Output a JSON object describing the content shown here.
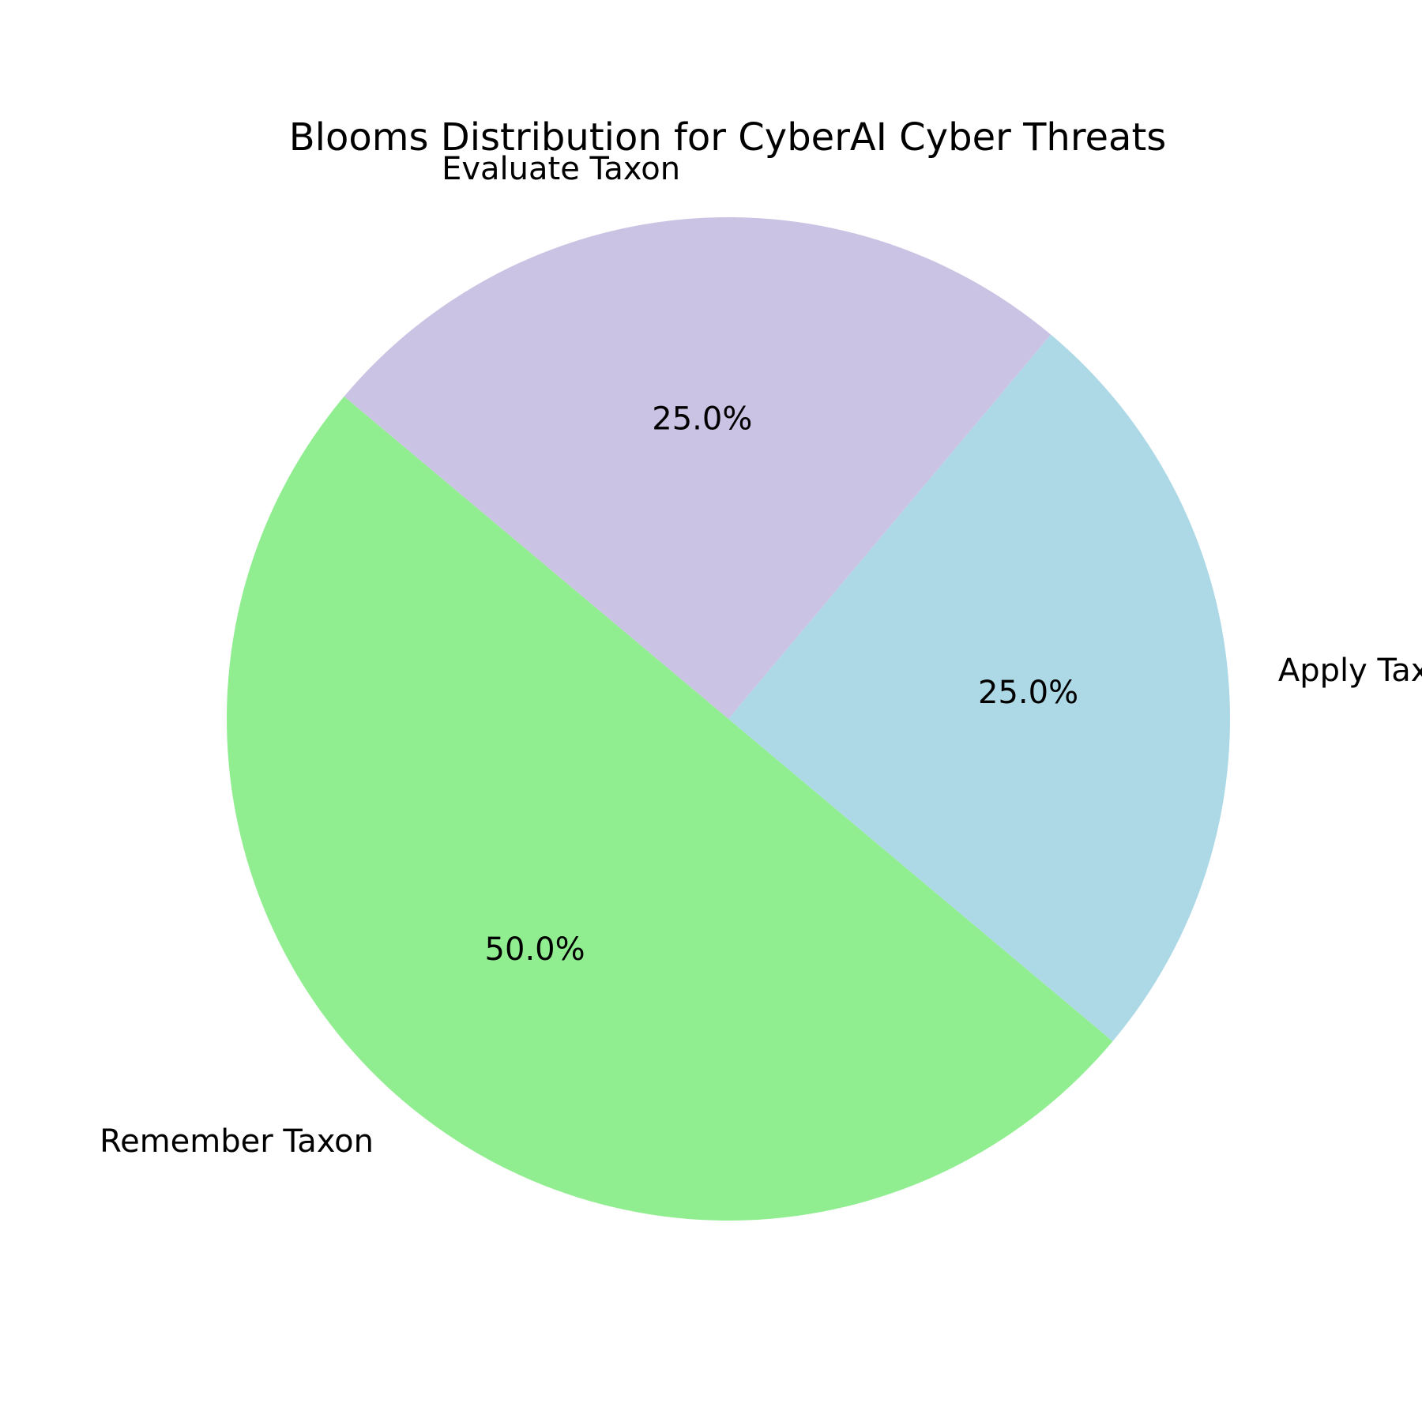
{
  "chart_data": {
    "type": "pie",
    "title": "Blooms Distribution for CyberAI Cyber Threats",
    "slices": [
      {
        "label": "Apply Taxon",
        "value": 25.0,
        "pct_label": "25.0%",
        "color": "#add8e6"
      },
      {
        "label": "Evaluate Taxon",
        "value": 25.0,
        "pct_label": "25.0%",
        "color": "#cbc3e3"
      },
      {
        "label": "Remember Taxon",
        "value": 50.0,
        "pct_label": "50.0%",
        "color": "#90ee90"
      }
    ],
    "start_angle_deg": -40,
    "direction": "counterclockwise",
    "legend": "none"
  }
}
